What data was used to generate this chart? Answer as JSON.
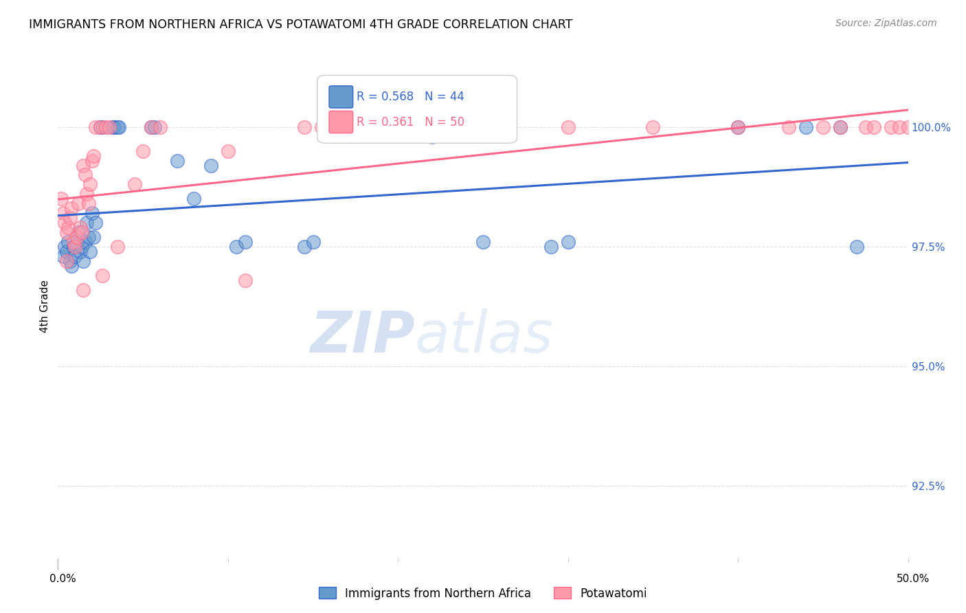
{
  "title": "IMMIGRANTS FROM NORTHERN AFRICA VS POTAWATOMI 4TH GRADE CORRELATION CHART",
  "source": "Source: ZipAtlas.com",
  "ylabel": "4th Grade",
  "yticks": [
    92.5,
    95.0,
    97.5,
    100.0
  ],
  "ytick_labels": [
    "92.5%",
    "95.0%",
    "97.5%",
    "100.0%"
  ],
  "xmin": 0.0,
  "xmax": 50.0,
  "ymin": 91.0,
  "ymax": 101.5,
  "legend_blue_label": "Immigrants from Northern Africa",
  "legend_pink_label": "Potawatomi",
  "r_blue": 0.568,
  "n_blue": 44,
  "r_pink": 0.361,
  "n_pink": 50,
  "blue_color": "#6699CC",
  "pink_color": "#FF99AA",
  "blue_line_color": "#3366CC",
  "pink_line_color": "#FF6688",
  "blue_scatter_x": [
    0.3,
    0.4,
    0.5,
    0.6,
    0.7,
    0.8,
    0.9,
    1.0,
    1.1,
    1.2,
    1.3,
    1.4,
    1.5,
    1.6,
    1.7,
    1.8,
    1.9,
    2.0,
    2.1,
    2.2,
    2.5,
    2.6,
    3.2,
    3.3,
    3.5,
    3.6,
    5.5,
    5.7,
    7.0,
    8.0,
    9.0,
    10.5,
    11.0,
    14.5,
    15.0,
    22.0,
    22.5,
    25.0,
    29.0,
    30.0,
    40.0,
    44.0,
    46.0,
    47.0
  ],
  "blue_scatter_y": [
    97.3,
    97.5,
    97.4,
    97.6,
    97.2,
    97.1,
    97.5,
    97.3,
    97.6,
    97.8,
    97.4,
    97.5,
    97.2,
    97.6,
    98.0,
    97.7,
    97.4,
    98.2,
    97.7,
    98.0,
    100.0,
    100.0,
    100.0,
    100.0,
    100.0,
    100.0,
    100.0,
    100.0,
    99.3,
    98.5,
    99.2,
    97.5,
    97.6,
    97.5,
    97.6,
    99.8,
    100.0,
    97.6,
    97.5,
    97.6,
    100.0,
    100.0,
    100.0,
    97.5
  ],
  "pink_scatter_x": [
    0.2,
    0.3,
    0.4,
    0.5,
    0.6,
    0.7,
    0.8,
    0.9,
    1.0,
    1.1,
    1.2,
    1.3,
    1.4,
    1.5,
    1.6,
    1.7,
    1.8,
    1.9,
    2.0,
    2.1,
    2.2,
    2.5,
    2.8,
    3.0,
    4.5,
    5.0,
    5.5,
    6.0,
    14.5,
    15.5,
    18.0,
    24.0,
    25.0,
    30.0,
    35.0,
    40.0,
    43.0,
    45.0,
    46.0,
    47.5,
    48.0,
    49.0,
    49.5,
    50.0,
    10.0,
    11.0,
    2.6,
    1.5,
    3.5,
    0.5
  ],
  "pink_scatter_y": [
    98.5,
    98.2,
    98.0,
    97.8,
    97.9,
    98.1,
    98.3,
    97.6,
    97.5,
    97.7,
    98.4,
    97.9,
    97.8,
    99.2,
    99.0,
    98.6,
    98.4,
    98.8,
    99.3,
    99.4,
    100.0,
    100.0,
    100.0,
    100.0,
    98.8,
    99.5,
    100.0,
    100.0,
    100.0,
    100.0,
    100.0,
    100.0,
    100.0,
    100.0,
    100.0,
    100.0,
    100.0,
    100.0,
    100.0,
    100.0,
    100.0,
    100.0,
    100.0,
    100.0,
    99.5,
    96.8,
    96.9,
    96.6,
    97.5,
    97.2
  ],
  "watermark_zip": "ZIP",
  "watermark_atlas": "atlas",
  "bg_color": "#ffffff",
  "grid_color": "#dddddd"
}
